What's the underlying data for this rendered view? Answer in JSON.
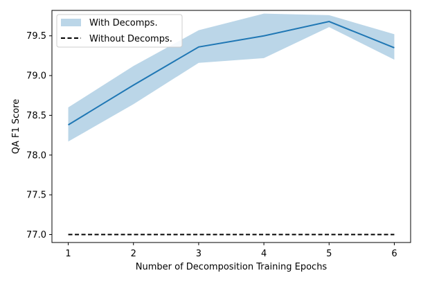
{
  "chart_data": {
    "type": "line",
    "xlabel": "Number of Decomposition Training Epochs",
    "ylabel": "QA F1 Score",
    "xlim": [
      0.75,
      6.25
    ],
    "ylim": [
      76.9,
      79.82
    ],
    "x_ticks": [
      1,
      2,
      3,
      4,
      5,
      6
    ],
    "y_ticks": [
      77.0,
      77.5,
      78.0,
      78.5,
      79.0,
      79.5
    ],
    "x_tick_labels": [
      "1",
      "2",
      "3",
      "4",
      "5",
      "6"
    ],
    "y_tick_labels": [
      "77.0",
      "77.5",
      "78.0",
      "78.5",
      "79.0",
      "79.5"
    ],
    "series": [
      {
        "name": "With Decomps.",
        "style": "solid line with shaded band",
        "color": "#1f77b4",
        "band_color": "#1f77b4",
        "x": [
          1,
          2,
          3,
          4,
          5,
          6
        ],
        "values": [
          78.38,
          78.88,
          79.36,
          79.5,
          79.68,
          79.35
        ],
        "lower": [
          78.17,
          78.64,
          79.16,
          79.22,
          79.61,
          79.2
        ],
        "upper": [
          78.6,
          79.12,
          79.57,
          79.78,
          79.76,
          79.52
        ]
      },
      {
        "name": "Without Decomps.",
        "style": "dashed line",
        "color": "#000000",
        "x": [
          1,
          6
        ],
        "values": [
          77.0,
          77.0
        ]
      }
    ],
    "legend": {
      "placement": "top-left",
      "entries": [
        "With Decomps.",
        "Without Decomps."
      ]
    },
    "grid": false
  }
}
